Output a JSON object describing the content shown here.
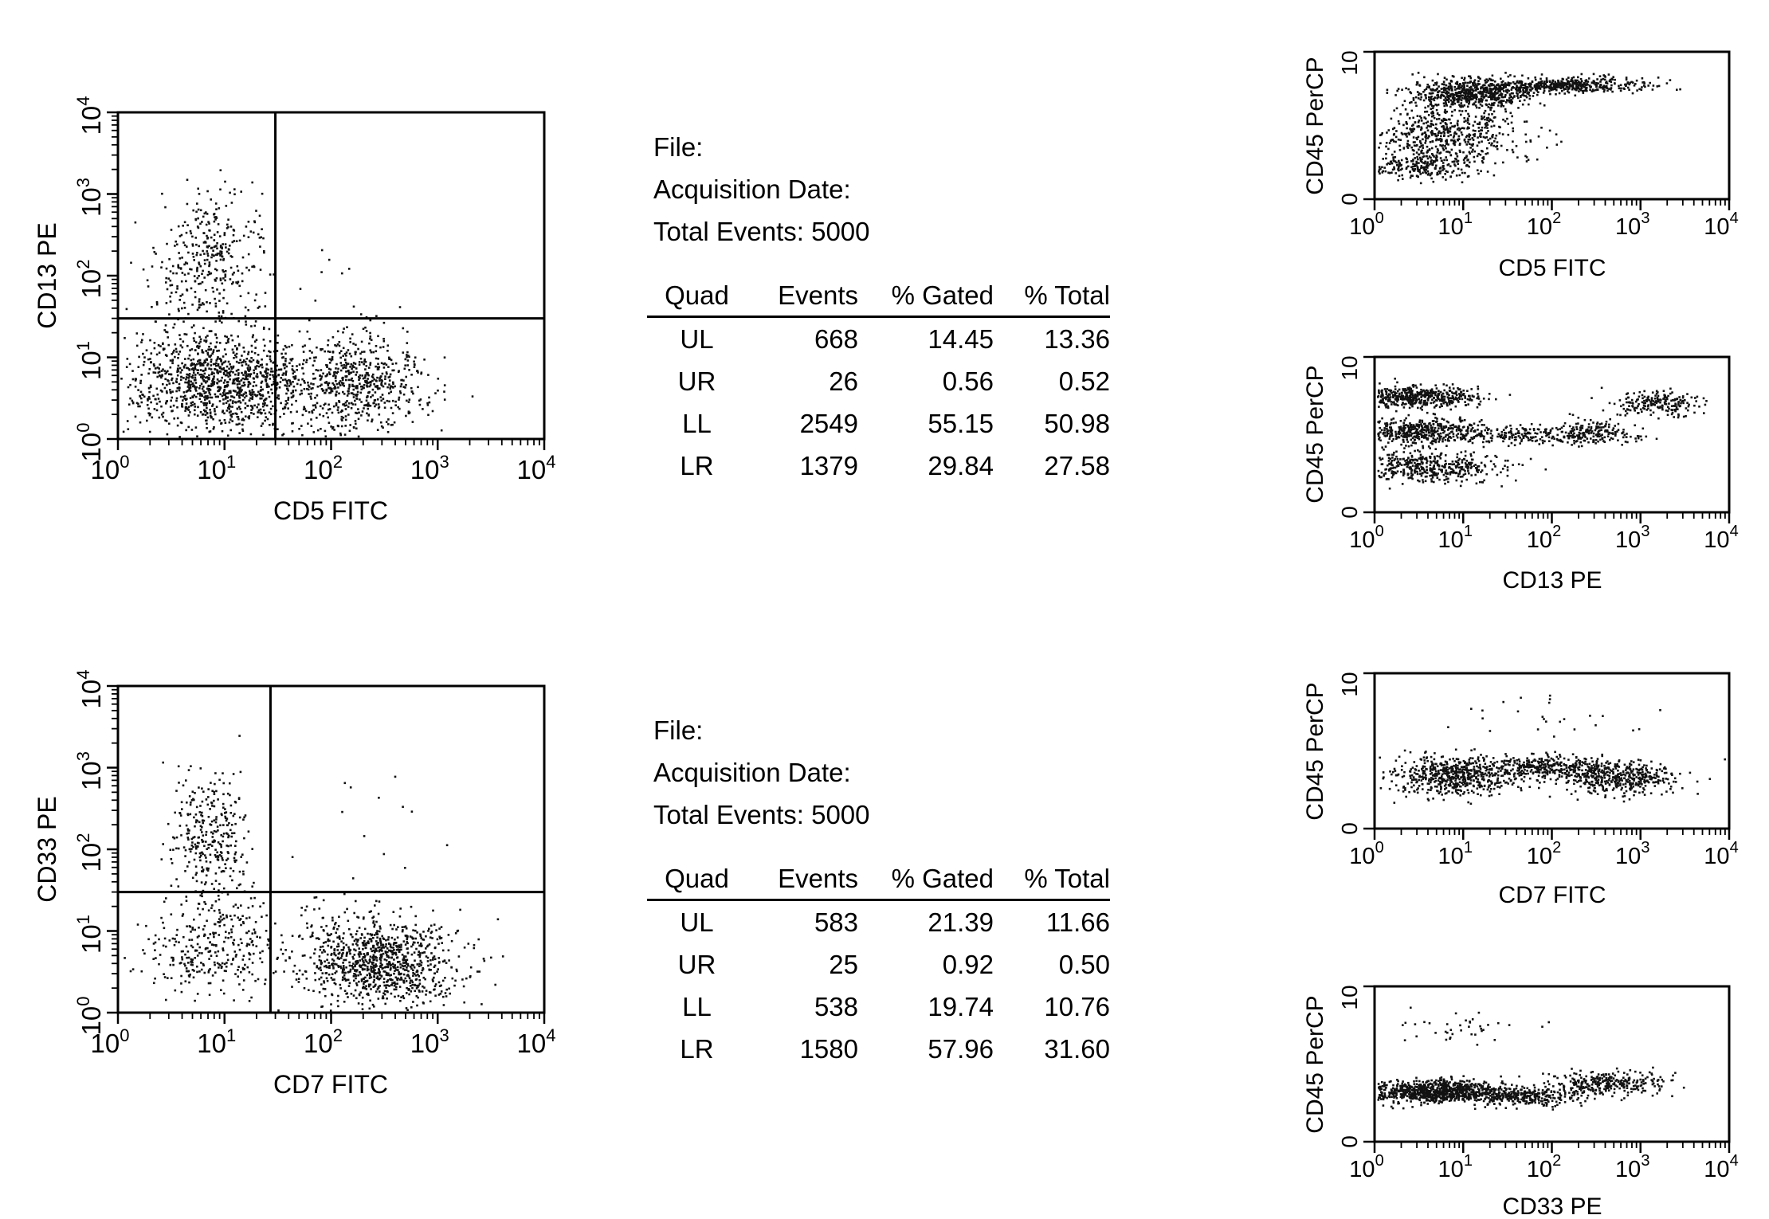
{
  "chart_data": [
    {
      "type": "scatter",
      "title": "",
      "xlabel": "CD5 FITC",
      "ylabel": "CD13 PE",
      "xscale": "log",
      "yscale": "log",
      "xlim": [
        1,
        10000
      ],
      "ylim": [
        1,
        10000
      ],
      "quadrant_gate": {
        "x": 30,
        "y": 30
      },
      "clusters": [
        {
          "x": 9,
          "y": 5,
          "spread_x": 0.45,
          "spread_y": 0.3,
          "n": 1200
        },
        {
          "x": 180,
          "y": 5,
          "spread_x": 0.3,
          "spread_y": 0.28,
          "n": 600
        },
        {
          "x": 7,
          "y": 200,
          "spread_x": 0.25,
          "spread_y": 0.35,
          "n": 300
        },
        {
          "x": 6,
          "y": 40,
          "spread_x": 0.3,
          "spread_y": 0.3,
          "n": 80
        },
        {
          "x": 80,
          "y": 80,
          "spread_x": 0.4,
          "spread_y": 0.3,
          "n": 12
        }
      ]
    },
    {
      "type": "table",
      "file_label": "File:",
      "acquisition_label": "Acquisition Date:",
      "total_events_label": "Total Events: 5000",
      "columns": [
        "Quad",
        "Events",
        "% Gated",
        "% Total"
      ],
      "rows": [
        [
          "UL",
          "668",
          "14.45",
          "13.36"
        ],
        [
          "UR",
          "26",
          "0.56",
          "0.52"
        ],
        [
          "LL",
          "2549",
          "55.15",
          "50.98"
        ],
        [
          "LR",
          "1379",
          "29.84",
          "27.58"
        ]
      ]
    },
    {
      "type": "scatter",
      "title": "",
      "xlabel": "CD7 FITC",
      "ylabel": "CD33 PE",
      "xscale": "log",
      "yscale": "log",
      "xlim": [
        1,
        10000
      ],
      "ylim": [
        1,
        10000
      ],
      "quadrant_gate": {
        "x": 27,
        "y": 30
      },
      "clusters": [
        {
          "x": 300,
          "y": 4,
          "spread_x": 0.35,
          "spread_y": 0.25,
          "n": 900
        },
        {
          "x": 7,
          "y": 150,
          "spread_x": 0.18,
          "spread_y": 0.4,
          "n": 320
        },
        {
          "x": 7,
          "y": 6,
          "spread_x": 0.3,
          "spread_y": 0.3,
          "n": 300
        },
        {
          "x": 100,
          "y": 8,
          "spread_x": 0.5,
          "spread_y": 0.3,
          "n": 150
        },
        {
          "x": 200,
          "y": 200,
          "spread_x": 0.5,
          "spread_y": 0.4,
          "n": 12
        }
      ]
    },
    {
      "type": "table",
      "file_label": "File:",
      "acquisition_label": "Acquisition Date:",
      "total_events_label": "Total Events: 5000",
      "columns": [
        "Quad",
        "Events",
        "% Gated",
        "% Total"
      ],
      "rows": [
        [
          "UL",
          "583",
          "21.39",
          "11.66"
        ],
        [
          "UR",
          "25",
          "0.92",
          "0.50"
        ],
        [
          "LL",
          "538",
          "19.74",
          "10.76"
        ],
        [
          "LR",
          "1580",
          "57.96",
          "31.60"
        ]
      ]
    },
    {
      "type": "scatter",
      "title": "",
      "xlabel": "CD5 FITC",
      "ylabel": "CD45 PerCP",
      "xscale": "log",
      "xlim": [
        1,
        10000
      ],
      "ylim": [
        0,
        10
      ],
      "clusters": [
        {
          "x": 12,
          "y": 7.2,
          "spread_x": 0.35,
          "spread_y": 0.5,
          "n": 650
        },
        {
          "x": 6,
          "y": 4.5,
          "spread_x": 0.45,
          "spread_y": 1.0,
          "n": 550
        },
        {
          "x": 3,
          "y": 2.3,
          "spread_x": 0.35,
          "spread_y": 0.4,
          "n": 250
        },
        {
          "x": 150,
          "y": 7.8,
          "spread_x": 0.45,
          "spread_y": 0.25,
          "n": 450
        }
      ]
    },
    {
      "type": "scatter",
      "title": "",
      "xlabel": "CD13 PE",
      "ylabel": "CD45 PerCP",
      "xscale": "log",
      "xlim": [
        1,
        10000
      ],
      "ylim": [
        0,
        10
      ],
      "clusters": [
        {
          "x": 3,
          "y": 7.5,
          "spread_x": 0.35,
          "spread_y": 0.35,
          "n": 500
        },
        {
          "x": 3,
          "y": 5.3,
          "spread_x": 0.35,
          "spread_y": 0.4,
          "n": 450
        },
        {
          "x": 4,
          "y": 3.0,
          "spread_x": 0.4,
          "spread_y": 0.5,
          "n": 450
        },
        {
          "x": 40,
          "y": 5.0,
          "spread_x": 0.4,
          "spread_y": 0.3,
          "n": 200
        },
        {
          "x": 300,
          "y": 5.2,
          "spread_x": 0.25,
          "spread_y": 0.4,
          "n": 180
        },
        {
          "x": 1500,
          "y": 7.0,
          "spread_x": 0.25,
          "spread_y": 0.4,
          "n": 200
        }
      ]
    },
    {
      "type": "scatter",
      "title": "",
      "xlabel": "CD7 FITC",
      "ylabel": "CD45 PerCP",
      "xscale": "log",
      "xlim": [
        1,
        10000
      ],
      "ylim": [
        0,
        10
      ],
      "clusters": [
        {
          "x": 8,
          "y": 3.5,
          "spread_x": 0.35,
          "spread_y": 0.6,
          "n": 600
        },
        {
          "x": 100,
          "y": 4.0,
          "spread_x": 0.4,
          "spread_y": 0.35,
          "n": 350
        },
        {
          "x": 500,
          "y": 3.3,
          "spread_x": 0.35,
          "spread_y": 0.5,
          "n": 400
        },
        {
          "x": 100,
          "y": 7.5,
          "spread_x": 0.8,
          "spread_y": 0.6,
          "n": 25
        }
      ]
    },
    {
      "type": "scatter",
      "title": "",
      "xlabel": "CD33 PE",
      "ylabel": "CD45 PerCP",
      "xscale": "log",
      "xlim": [
        1,
        10000
      ],
      "ylim": [
        0,
        10
      ],
      "clusters": [
        {
          "x": 5,
          "y": 3.3,
          "spread_x": 0.4,
          "spread_y": 0.35,
          "n": 900
        },
        {
          "x": 50,
          "y": 3.0,
          "spread_x": 0.35,
          "spread_y": 0.3,
          "n": 300
        },
        {
          "x": 400,
          "y": 3.8,
          "spread_x": 0.35,
          "spread_y": 0.4,
          "n": 300
        },
        {
          "x": 10,
          "y": 7.3,
          "spread_x": 0.4,
          "spread_y": 0.5,
          "n": 40
        }
      ]
    }
  ]
}
